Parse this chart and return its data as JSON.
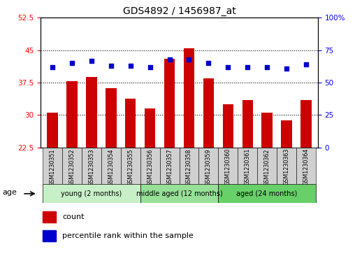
{
  "title": "GDS4892 / 1456987_at",
  "samples": [
    "GSM1230351",
    "GSM1230352",
    "GSM1230353",
    "GSM1230354",
    "GSM1230355",
    "GSM1230356",
    "GSM1230357",
    "GSM1230358",
    "GSM1230359",
    "GSM1230360",
    "GSM1230361",
    "GSM1230362",
    "GSM1230363",
    "GSM1230364"
  ],
  "counts": [
    30.5,
    37.8,
    38.8,
    36.2,
    33.8,
    31.5,
    43.0,
    45.5,
    38.5,
    32.5,
    33.5,
    30.5,
    28.8,
    33.5
  ],
  "percentiles": [
    62,
    65,
    67,
    63,
    63,
    62,
    68,
    68,
    65,
    62,
    62,
    62,
    61,
    64
  ],
  "bar_color": "#cc0000",
  "dot_color": "#0000cc",
  "ylim_left": [
    22.5,
    52.5
  ],
  "yticks_left": [
    22.5,
    30.0,
    37.5,
    45.0,
    52.5
  ],
  "ylim_right": [
    0,
    100
  ],
  "yticks_right": [
    0,
    25,
    50,
    75,
    100
  ],
  "groups": [
    {
      "label": "young (2 months)",
      "start": 0,
      "end": 5
    },
    {
      "label": "middle aged (12 months)",
      "start": 5,
      "end": 9
    },
    {
      "label": "aged (24 months)",
      "start": 9,
      "end": 14
    }
  ],
  "group_colors": [
    "#c8f0c8",
    "#98e098",
    "#68d068"
  ],
  "age_label": "age",
  "legend_count_label": "count",
  "legend_pct_label": "percentile rank within the sample",
  "grid_color": "black",
  "xtick_bg": "#d0d0d0"
}
